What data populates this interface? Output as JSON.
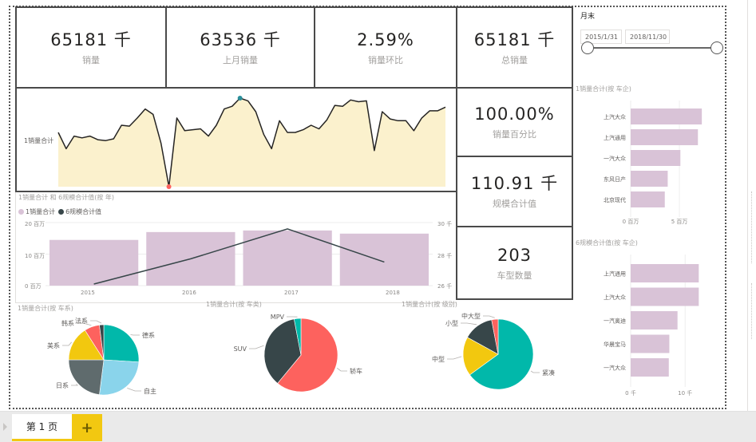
{
  "kpis": {
    "sales": {
      "value": "65181 千",
      "label": "销量"
    },
    "last_month_sales": {
      "value": "63536 千",
      "label": "上月销量"
    },
    "mom": {
      "value": "2.59%",
      "label": "销量环比"
    },
    "total_sales": {
      "value": "65181 千",
      "label": "总销量"
    },
    "sales_pct": {
      "value": "100.00%",
      "label": "销量百分比"
    },
    "scale_total": {
      "value": "110.91 千",
      "label": "规模合计值"
    },
    "model_count": {
      "value": "203",
      "label": "车型数量"
    }
  },
  "slicer": {
    "title": "月末",
    "start": "2015/1/31",
    "end": "2018/11/30",
    "range_fraction": [
      0,
      1
    ]
  },
  "colors": {
    "bar": "#d9c3d7",
    "line": "#252423",
    "area_fill": "#fbf1cd",
    "max_marker": "#2a8f9a",
    "min_marker": "#fd625e",
    "teal": "#01b8aa",
    "darkgray": "#374649",
    "red": "#fd625e",
    "yellow": "#f2c80f",
    "gray": "#5f6b6d",
    "lightblue": "#8ad4eb",
    "accent": "#f2c811"
  },
  "chart_data": [
    {
      "type": "area",
      "title": "",
      "ylabel": "1销量合计",
      "values": [
        62,
        44,
        58,
        56,
        58,
        54,
        53,
        55,
        70,
        69,
        78,
        88,
        82,
        50,
        2,
        78,
        64,
        65,
        66,
        58,
        70,
        88,
        91,
        100,
        97,
        85,
        60,
        44,
        75,
        62,
        62,
        65,
        70,
        66,
        76,
        92,
        91,
        98,
        96,
        97,
        42,
        85,
        77,
        75,
        75,
        64,
        78,
        86,
        86,
        90
      ],
      "max_index": 23,
      "min_index": 14
    },
    {
      "type": "bar+line",
      "title": "1销量合计 和 6规模合计值(按 年)",
      "legend": [
        "1销量合计",
        "6规模合计值"
      ],
      "legend_position": "top-left",
      "categories": [
        "2015",
        "2016",
        "2017",
        "2018"
      ],
      "series": [
        {
          "name": "1销量合计",
          "axis": "left",
          "values": [
            14.5,
            17,
            17.5,
            16.5
          ]
        },
        {
          "name": "6规模合计值",
          "axis": "right",
          "values": [
            26.1,
            27.7,
            29.6,
            27.5
          ]
        }
      ],
      "left_axis": {
        "ticks": [
          "0 百万",
          "10 百万",
          "20 百万"
        ],
        "range": [
          0,
          20
        ]
      },
      "right_axis": {
        "ticks": [
          "26 千",
          "28 千",
          "30 千"
        ],
        "range": [
          26,
          30
        ]
      }
    },
    {
      "type": "pie",
      "title": "1销量合计(按 车系)",
      "labels": [
        "德系",
        "自主",
        "日系",
        "美系",
        "韩系",
        "法系"
      ],
      "values": [
        26,
        26,
        23,
        16,
        7,
        2
      ],
      "colors": [
        "#01b8aa",
        "#8ad4eb",
        "#5f6b6d",
        "#f2c80f",
        "#fd625e",
        "#374649"
      ]
    },
    {
      "type": "pie",
      "title": "1销量合计(按 车类)",
      "labels": [
        "轿车",
        "SUV",
        "MPV"
      ],
      "values": [
        61,
        36,
        3
      ],
      "colors": [
        "#fd625e",
        "#374649",
        "#01b8aa"
      ]
    },
    {
      "type": "pie",
      "title": "1销量合计(按 级别)",
      "labels": [
        "紧凑",
        "中型",
        "小型",
        "中大型"
      ],
      "values": [
        65,
        18,
        14,
        3
      ],
      "colors": [
        "#01b8aa",
        "#f2c80f",
        "#374649",
        "#fd625e"
      ]
    },
    {
      "type": "bar",
      "orientation": "horizontal",
      "title": "1销量合计(按 车企)",
      "categories": [
        "上汽大众",
        "上汽通用",
        "一汽大众",
        "东风日产",
        "北京现代"
      ],
      "values": [
        7.3,
        6.9,
        5.1,
        3.8,
        3.5
      ],
      "xticks": [
        "0 百万",
        "5 百万"
      ],
      "xlim": [
        0,
        9.5
      ]
    },
    {
      "type": "bar",
      "orientation": "horizontal",
      "title": "6规模合计值(按 车企)",
      "categories": [
        "上汽通用",
        "上汽大众",
        "一汽奥迪",
        "华晨宝马",
        "一汽大众"
      ],
      "values": [
        12.5,
        12.5,
        8.6,
        7.1,
        7.0
      ],
      "xticks": [
        "0 千",
        "10 千"
      ],
      "xlim": [
        0,
        17
      ]
    }
  ],
  "tabs": {
    "pages": [
      {
        "label": "第 1 页"
      }
    ],
    "add_label": "+"
  }
}
